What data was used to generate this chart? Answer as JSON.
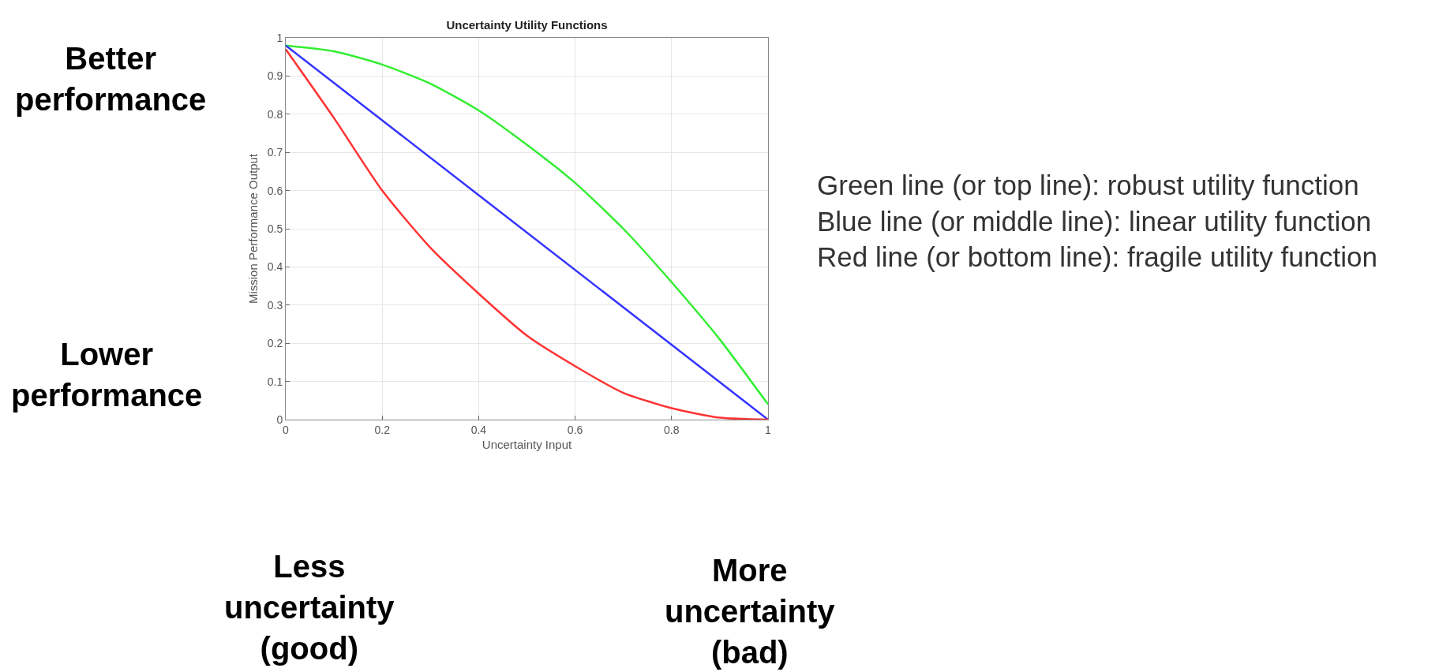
{
  "chart_data": {
    "type": "line",
    "title": "Uncertainty Utility Functions",
    "xlabel": "Uncertainty Input",
    "ylabel": "Mission Performance Output",
    "x": [
      0,
      0.1,
      0.2,
      0.3,
      0.4,
      0.5,
      0.6,
      0.7,
      0.8,
      0.9,
      1
    ],
    "series": [
      {
        "color": "#33ee33",
        "values": [
          0.98,
          0.965,
          0.93,
          0.88,
          0.81,
          0.72,
          0.62,
          0.5,
          0.36,
          0.21,
          0.04
        ]
      },
      {
        "color": "#3333ff",
        "x": [
          0,
          1
        ],
        "values": [
          0.98,
          0
        ]
      },
      {
        "color": "#ff3333",
        "values": [
          0.97,
          0.79,
          0.6,
          0.45,
          0.33,
          0.22,
          0.14,
          0.07,
          0.03,
          0.005,
          0
        ]
      }
    ],
    "xlim": [
      0,
      1
    ],
    "xticks": [
      0,
      0.2,
      0.4,
      0.6,
      0.8,
      1
    ],
    "ylim": [
      0,
      1
    ],
    "yticks": [
      0,
      0.1,
      0.2,
      0.3,
      0.4,
      0.5,
      0.6,
      0.7,
      0.8,
      0.9,
      1
    ],
    "grid": true,
    "marker": "none",
    "line_style": "solid",
    "annotations": [
      "Better\nperformance",
      "Lower\nperformance",
      "Less\nuncertainty\n(good)",
      "More\nuncertainty\n(bad)",
      "Green line (or top line): robust utility function\nBlue line (or middle line): linear utility function\nRed line (or bottom line): fragile utility function"
    ]
  }
}
